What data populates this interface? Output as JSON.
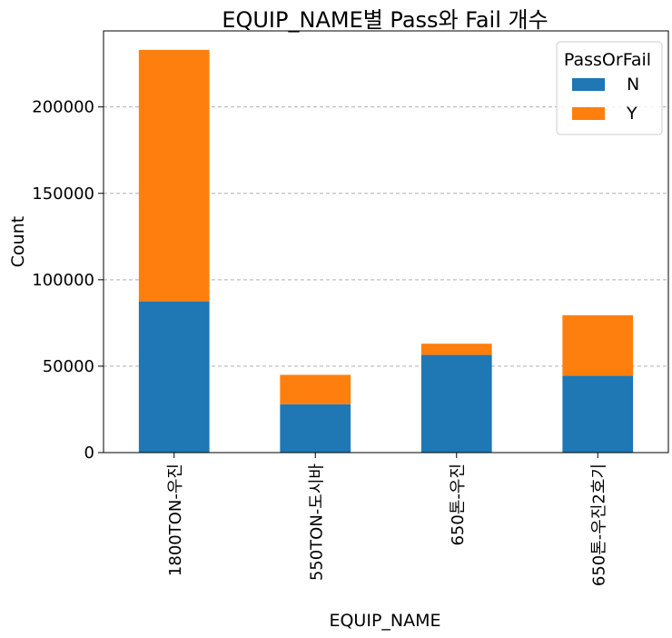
{
  "chart_data": {
    "type": "bar",
    "stacked": true,
    "title": "EQUIP_NAME별 Pass와 Fail 개수",
    "xlabel": "EQUIP_NAME",
    "ylabel": "Count",
    "categories": [
      "1800TON-우진",
      "550TON-도시바",
      "650톤-우진",
      "650톤-우진2호기"
    ],
    "series": [
      {
        "name": "N",
        "color": "#1f77b4",
        "values": [
          87500,
          28000,
          56500,
          44500
        ]
      },
      {
        "name": "Y",
        "color": "#ff7f0e",
        "values": [
          145500,
          17000,
          6500,
          35000
        ]
      }
    ],
    "ylim": [
      0,
      244000
    ],
    "yticks": [
      0,
      50000,
      100000,
      150000,
      200000
    ],
    "grid": "y-dashed",
    "legend": {
      "title": "PassOrFail",
      "placement": "top-right"
    }
  }
}
